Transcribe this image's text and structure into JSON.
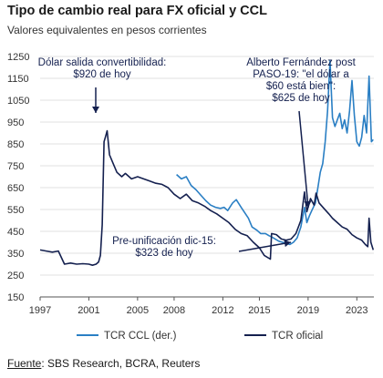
{
  "header": {
    "title": "Tipo de cambio real para FX oficial y CCL",
    "subtitle": "Valores equivalentes en pesos corrientes"
  },
  "footer": {
    "source_label": "Fuente",
    "source_text": ": SBS Research, BCRA, Reuters"
  },
  "colors": {
    "ccl": "#2a7fc4",
    "oficial": "#14204f",
    "grid": "#e2e2e2",
    "axis": "#555555",
    "text": "#333333"
  },
  "chart_data": {
    "type": "line",
    "title": "Tipo de cambio real para FX oficial y CCL",
    "subtitle": "Valores equivalentes en pesos corrientes",
    "xlabel": "",
    "ylabel": "",
    "xlim": [
      1997,
      2024.4
    ],
    "ylim": [
      150,
      1250
    ],
    "xticks": [
      "1997",
      "2001",
      "2005",
      "2008",
      "2012",
      "2015",
      "2019",
      "2023"
    ],
    "xtick_values": [
      1997,
      2001,
      2005,
      2008,
      2012,
      2015,
      2019,
      2023
    ],
    "yticks": [
      150,
      250,
      350,
      450,
      550,
      650,
      750,
      850,
      950,
      1050,
      1150,
      1250
    ],
    "grid": true,
    "legend_position": "bottom",
    "series": [
      {
        "name": "TCR CCL (der.)",
        "key": "ccl",
        "points": [
          [
            2008.2,
            710
          ],
          [
            2008.6,
            690
          ],
          [
            2009.0,
            700
          ],
          [
            2009.4,
            660
          ],
          [
            2009.8,
            640
          ],
          [
            2010.2,
            615
          ],
          [
            2010.6,
            590
          ],
          [
            2011.0,
            570
          ],
          [
            2011.4,
            560
          ],
          [
            2011.8,
            555
          ],
          [
            2012.1,
            560
          ],
          [
            2012.4,
            545
          ],
          [
            2012.8,
            580
          ],
          [
            2013.1,
            595
          ],
          [
            2013.5,
            560
          ],
          [
            2013.8,
            535
          ],
          [
            2014.1,
            510
          ],
          [
            2014.4,
            470
          ],
          [
            2014.8,
            455
          ],
          [
            2015.1,
            440
          ],
          [
            2015.5,
            440
          ],
          [
            2015.8,
            430
          ],
          [
            2016.0,
            425
          ],
          [
            2016.3,
            415
          ],
          [
            2016.6,
            405
          ],
          [
            2016.9,
            400
          ],
          [
            2017.2,
            395
          ],
          [
            2017.5,
            390
          ],
          [
            2017.8,
            400
          ],
          [
            2018.1,
            420
          ],
          [
            2018.4,
            470
          ],
          [
            2018.7,
            560
          ],
          [
            2018.9,
            490
          ],
          [
            2019.1,
            520
          ],
          [
            2019.3,
            545
          ],
          [
            2019.6,
            580
          ],
          [
            2019.8,
            650
          ],
          [
            2020.0,
            720
          ],
          [
            2020.2,
            760
          ],
          [
            2020.4,
            860
          ],
          [
            2020.6,
            1000
          ],
          [
            2020.8,
            1230
          ],
          [
            2021.0,
            970
          ],
          [
            2021.2,
            930
          ],
          [
            2021.4,
            960
          ],
          [
            2021.6,
            990
          ],
          [
            2021.8,
            920
          ],
          [
            2022.0,
            960
          ],
          [
            2022.2,
            900
          ],
          [
            2022.4,
            1000
          ],
          [
            2022.6,
            1140
          ],
          [
            2022.8,
            980
          ],
          [
            2023.0,
            860
          ],
          [
            2023.2,
            840
          ],
          [
            2023.4,
            880
          ],
          [
            2023.6,
            980
          ],
          [
            2023.8,
            900
          ],
          [
            2024.0,
            1160
          ],
          [
            2024.2,
            860
          ],
          [
            2024.35,
            870
          ]
        ]
      },
      {
        "name": "TCR oficial",
        "key": "oficial",
        "points": [
          [
            1997.0,
            365
          ],
          [
            1997.5,
            360
          ],
          [
            1998.0,
            355
          ],
          [
            1998.5,
            360
          ],
          [
            1999.0,
            300
          ],
          [
            1999.5,
            305
          ],
          [
            2000.0,
            300
          ],
          [
            2000.5,
            302
          ],
          [
            2001.0,
            300
          ],
          [
            2001.3,
            295
          ],
          [
            2001.6,
            300
          ],
          [
            2001.8,
            310
          ],
          [
            2001.95,
            340
          ],
          [
            2002.1,
            480
          ],
          [
            2002.25,
            860
          ],
          [
            2002.35,
            880
          ],
          [
            2002.5,
            910
          ],
          [
            2002.7,
            800
          ],
          [
            2003.0,
            760
          ],
          [
            2003.3,
            720
          ],
          [
            2003.7,
            700
          ],
          [
            2004.0,
            715
          ],
          [
            2004.5,
            690
          ],
          [
            2005.0,
            700
          ],
          [
            2005.5,
            690
          ],
          [
            2006.0,
            680
          ],
          [
            2006.5,
            670
          ],
          [
            2007.0,
            665
          ],
          [
            2007.5,
            650
          ],
          [
            2008.0,
            620
          ],
          [
            2008.5,
            600
          ],
          [
            2009.0,
            620
          ],
          [
            2009.5,
            590
          ],
          [
            2010.0,
            580
          ],
          [
            2010.5,
            565
          ],
          [
            2011.0,
            545
          ],
          [
            2011.5,
            530
          ],
          [
            2012.0,
            510
          ],
          [
            2012.5,
            490
          ],
          [
            2013.0,
            460
          ],
          [
            2013.5,
            440
          ],
          [
            2014.0,
            430
          ],
          [
            2014.5,
            400
          ],
          [
            2015.0,
            375
          ],
          [
            2015.4,
            340
          ],
          [
            2015.9,
            323
          ],
          [
            2016.0,
            440
          ],
          [
            2016.4,
            435
          ],
          [
            2016.8,
            415
          ],
          [
            2017.2,
            410
          ],
          [
            2017.6,
            415
          ],
          [
            2018.0,
            440
          ],
          [
            2018.4,
            500
          ],
          [
            2018.7,
            630
          ],
          [
            2018.9,
            540
          ],
          [
            2019.2,
            600
          ],
          [
            2019.5,
            570
          ],
          [
            2019.65,
            625
          ],
          [
            2019.9,
            580
          ],
          [
            2020.3,
            555
          ],
          [
            2020.7,
            530
          ],
          [
            2021.0,
            510
          ],
          [
            2021.4,
            490
          ],
          [
            2021.8,
            470
          ],
          [
            2022.2,
            460
          ],
          [
            2022.6,
            435
          ],
          [
            2023.0,
            420
          ],
          [
            2023.4,
            410
          ],
          [
            2023.7,
            390
          ],
          [
            2023.9,
            380
          ],
          [
            2024.0,
            510
          ],
          [
            2024.15,
            400
          ],
          [
            2024.35,
            365
          ]
        ]
      }
    ],
    "annotations": [
      {
        "lines": [
          "Dólar salida convertibilidad:",
          "$920 de hoy"
        ],
        "point": [
          2002.25,
          900
        ]
      },
      {
        "lines": [
          "Alberto Fernández post",
          "PASO-19: \"el dólar a",
          "$60 está bien\":",
          "$625 de hoy"
        ],
        "point": [
          2019.6,
          650
        ]
      },
      {
        "lines": [
          "Pre-unificación dic-15:",
          "$323 de hoy"
        ],
        "point": [
          2015.8,
          330
        ]
      }
    ]
  }
}
